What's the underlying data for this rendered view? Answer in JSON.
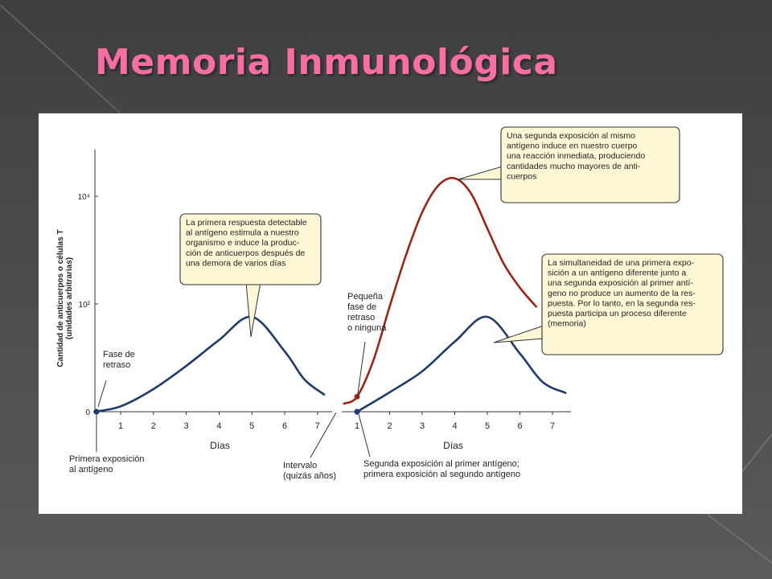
{
  "slide": {
    "title": "Memoria Inmunológica",
    "colors": {
      "title": "#f56fa5",
      "background": "#4a4a4a",
      "panel": "#ffffff",
      "callout": "#fdf7d6",
      "primary_curve": "#1f3a6b",
      "secondary_curve": "#9b2418"
    }
  },
  "chart_data": {
    "type": "line",
    "ylabel": "Cantidad de anticuerpos o células T\n(unidades arbitrarias)",
    "y_ticks": [
      "0",
      "10²",
      "10⁴"
    ],
    "y_tick_values": [
      0,
      2,
      4
    ],
    "ylim": [
      0,
      4.5
    ],
    "panels": [
      {
        "xlabel": "Días",
        "x_ticks": [
          "1",
          "2",
          "3",
          "4",
          "5",
          "6",
          "7"
        ],
        "xlim": [
          0.2,
          7.4
        ],
        "series": [
          {
            "color": "#1f3a6b",
            "points": [
              [
                0.2,
                0
              ],
              [
                1,
                0.1
              ],
              [
                2,
                0.42
              ],
              [
                3,
                0.85
              ],
              [
                4,
                1.33
              ],
              [
                5,
                1.76
              ],
              [
                6,
                1.12
              ],
              [
                6.6,
                0.6
              ],
              [
                7.2,
                0.32
              ]
            ]
          }
        ]
      },
      {
        "xlabel": "Días",
        "x_ticks": [
          "1",
          "2",
          "3",
          "4",
          "5",
          "6",
          "7"
        ],
        "xlim": [
          0.6,
          7.4
        ],
        "series": [
          {
            "color": "#9b2418",
            "points": [
              [
                0.6,
                0.15
              ],
              [
                1,
                0.28
              ],
              [
                1.5,
                0.95
              ],
              [
                2,
                1.95
              ],
              [
                2.5,
                2.9
              ],
              [
                3,
                3.7
              ],
              [
                3.5,
                4.2
              ],
              [
                4,
                4.33
              ],
              [
                4.5,
                4.05
              ],
              [
                5,
                3.4
              ],
              [
                5.5,
                2.75
              ],
              [
                6,
                2.3
              ],
              [
                6.5,
                1.95
              ]
            ]
          },
          {
            "color": "#1f3a6b",
            "points": [
              [
                1,
                0
              ],
              [
                2,
                0.36
              ],
              [
                3,
                0.75
              ],
              [
                4,
                1.3
              ],
              [
                5,
                1.76
              ],
              [
                6,
                1.08
              ],
              [
                6.7,
                0.55
              ],
              [
                7.4,
                0.35
              ]
            ]
          }
        ]
      }
    ],
    "annotations": {
      "fase_retraso": "Fase de\nretraso",
      "primera_exposicion": "Primera exposición\nal antígeno",
      "primera_respuesta": "La primera respuesta detectable\nal antígeno estimula a nuestro\norganismo e induce la produc-\nción de anticuerpos después de\nuna demora de varios días",
      "intervalo": "Intervalo\n(quizás años)",
      "pequena_fase": "Pequeña\nfase de\nretraso\no ninguna",
      "segunda_exposicion": "Segunda exposición al primer antígeno;\nprimera exposición al segundo antígeno",
      "segunda_respuesta": "Una segunda exposición al mismo\nantígeno induce en nuestro cuerpo\nuna reacción inmediata, produciendo\ncantidades mucho mayores de anti-\ncuerpos",
      "simultaneidad": "La simultaneidad de una primera expo-\nsición a un antígeno diferente junto a\nuna segunda exposición al primer antí-\ngeno no produce un aumento de la res-\npuesta. Por lo tanto, en la segunda res-\npuesta participa un proceso diferente\n(memoria)"
    }
  }
}
